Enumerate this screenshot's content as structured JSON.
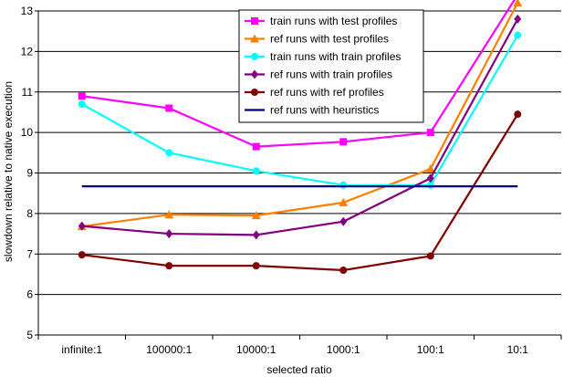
{
  "chart_data": {
    "type": "line",
    "categories": [
      "infinite:1",
      "100000:1",
      "10000:1",
      "1000:1",
      "100:1",
      "10:1"
    ],
    "xlabel": "selected ratio",
    "ylabel": "slowdown relative to native execution",
    "ylim": [
      5,
      13
    ],
    "yticks": [
      5,
      6,
      7,
      8,
      9,
      10,
      11,
      12,
      13
    ],
    "grid": "horizontal",
    "legend_position": "top-right",
    "series": [
      {
        "name": "train runs with test profiles",
        "color": "#ff00ff",
        "marker": "square",
        "values": [
          10.9,
          10.6,
          9.65,
          9.77,
          10.0,
          13.4
        ]
      },
      {
        "name": "ref runs with test profiles",
        "color": "#ff8000",
        "marker": "triangle",
        "values": [
          7.68,
          7.97,
          7.95,
          8.27,
          9.1,
          13.2
        ]
      },
      {
        "name": "train runs with train profiles",
        "color": "#00ffff",
        "marker": "circle",
        "values": [
          10.7,
          9.5,
          9.05,
          8.7,
          8.7,
          12.4
        ]
      },
      {
        "name": "ref runs with train profiles",
        "color": "#800080",
        "marker": "diamond",
        "values": [
          7.69,
          7.5,
          7.47,
          7.8,
          8.87,
          12.8
        ]
      },
      {
        "name": "ref runs with ref profiles",
        "color": "#800000",
        "marker": "circle",
        "values": [
          6.98,
          6.71,
          6.71,
          6.6,
          6.95,
          10.45
        ]
      },
      {
        "name": "ref runs with heuristics",
        "color": "#000080",
        "marker": "none",
        "values": [
          8.67,
          8.67,
          8.67,
          8.67,
          8.67,
          8.67
        ]
      }
    ]
  }
}
